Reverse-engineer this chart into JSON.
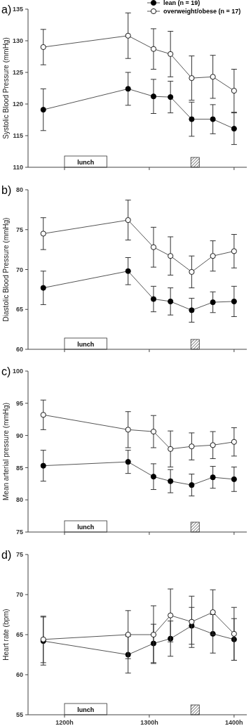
{
  "chart_data": [
    {
      "type": "line",
      "title": "a)",
      "ylabel": "Systolic Blood Pressure (mmHg)",
      "x": [
        1175,
        1275,
        1305,
        1325,
        1350,
        1375,
        1400
      ],
      "xlim": [
        1157,
        1415
      ],
      "xticks": [
        {
          "value": 1200,
          "label": null
        },
        {
          "value": 1300,
          "label": null
        },
        {
          "value": 1400,
          "label": null
        }
      ],
      "ylim": [
        110,
        135
      ],
      "yticks": [
        110,
        115,
        120,
        125,
        130,
        135
      ],
      "tick_labels": "y",
      "marker": "circle",
      "line_style": "solid",
      "grid": false,
      "legend": "top right",
      "bands": [
        {
          "axis": "x",
          "from": 1200,
          "to": 1250,
          "label": "lunch"
        },
        {
          "axis": "x",
          "from": 1349,
          "to": 1359
        }
      ],
      "series": [
        {
          "name": "lean (n = 19)",
          "color": "#000000",
          "values": [
            119.1,
            122.4,
            121.2,
            121.1,
            117.6,
            117.6,
            116.1
          ],
          "errors": [
            3.3,
            2.6,
            2.7,
            2.5,
            2.7,
            2.3,
            2.5
          ]
        },
        {
          "name": "overweight/obese (n = 17)",
          "color": "#ffffff",
          "values": [
            129.0,
            130.8,
            128.7,
            127.9,
            124.1,
            124.3,
            122.1
          ],
          "errors": [
            2.8,
            3.6,
            3.2,
            3.6,
            3.5,
            3.4,
            3.4
          ]
        }
      ]
    },
    {
      "type": "line",
      "title": "b)",
      "ylabel": "Diastolic Blood Pressure (mmHg)",
      "x": [
        1175,
        1275,
        1305,
        1325,
        1350,
        1375,
        1400
      ],
      "xlim": [
        1157,
        1415
      ],
      "xticks": [
        {
          "value": 1200,
          "label": null
        },
        {
          "value": 1300,
          "label": null
        },
        {
          "value": 1400,
          "label": null
        }
      ],
      "ylim": [
        60,
        80
      ],
      "yticks": [
        60,
        65,
        70,
        75,
        80
      ],
      "tick_labels": "y",
      "marker": "circle",
      "line_style": "solid",
      "grid": false,
      "legend": false,
      "bands": [
        {
          "axis": "x",
          "from": 1200,
          "to": 1250,
          "label": "lunch"
        },
        {
          "axis": "x",
          "from": 1349,
          "to": 1359
        }
      ],
      "series": [
        {
          "color": "#000000",
          "values": [
            67.7,
            69.8,
            66.3,
            66.0,
            64.9,
            65.9,
            66.0
          ],
          "errors": [
            2.1,
            1.7,
            1.6,
            1.7,
            1.5,
            1.3,
            1.9
          ]
        },
        {
          "color": "#ffffff",
          "values": [
            74.5,
            76.2,
            72.8,
            71.7,
            69.7,
            71.7,
            72.3
          ],
          "errors": [
            2.0,
            2.5,
            2.5,
            2.4,
            2.0,
            1.9,
            2.1
          ]
        }
      ]
    },
    {
      "type": "line",
      "title": "c)",
      "ylabel": "Mean arterial pressure (mmHg)",
      "x": [
        1175,
        1275,
        1305,
        1325,
        1350,
        1375,
        1400
      ],
      "xlim": [
        1157,
        1415
      ],
      "xticks": [
        {
          "value": 1200,
          "label": null
        },
        {
          "value": 1300,
          "label": null
        },
        {
          "value": 1400,
          "label": null
        }
      ],
      "ylim": [
        75,
        100
      ],
      "yticks": [
        75,
        80,
        85,
        90,
        95,
        100
      ],
      "tick_labels": "y",
      "marker": "circle",
      "line_style": "solid",
      "grid": false,
      "legend": false,
      "bands": [
        {
          "axis": "x",
          "from": 1200,
          "to": 1250,
          "label": "lunch"
        },
        {
          "axis": "x",
          "from": 1349,
          "to": 1359
        }
      ],
      "series": [
        {
          "color": "#000000",
          "values": [
            85.3,
            85.9,
            83.6,
            82.9,
            82.3,
            83.5,
            83.2
          ],
          "errors": [
            2.4,
            1.8,
            2.0,
            1.8,
            1.7,
            1.7,
            1.9
          ]
        },
        {
          "color": "#ffffff",
          "values": [
            93.2,
            90.9,
            90.6,
            87.9,
            88.3,
            88.5,
            89.0
          ],
          "errors": [
            2.3,
            2.8,
            2.5,
            2.8,
            2.1,
            2.1,
            2.2
          ]
        }
      ]
    },
    {
      "type": "line",
      "title": "d)",
      "ylabel": "Heart rate (bpm)",
      "x": [
        1175,
        1275,
        1305,
        1325,
        1350,
        1375,
        1400
      ],
      "xlim": [
        1157,
        1415
      ],
      "xticks": [
        {
          "value": 1200,
          "label": "1200h"
        },
        {
          "value": 1300,
          "label": "1300h"
        },
        {
          "value": 1400,
          "label": "1400h"
        }
      ],
      "ylim": [
        55,
        75
      ],
      "yticks": [
        55,
        60,
        65,
        70,
        75
      ],
      "marker": "circle",
      "line_style": "solid",
      "grid": false,
      "legend": false,
      "bands": [
        {
          "axis": "x",
          "from": 1200,
          "to": 1250,
          "label": "lunch"
        },
        {
          "axis": "x",
          "from": 1349,
          "to": 1359
        }
      ],
      "series": [
        {
          "color": "#000000",
          "values": [
            64.2,
            62.5,
            63.9,
            64.5,
            66.1,
            65.1,
            64.4
          ],
          "errors": [
            3.0,
            2.3,
            2.4,
            2.2,
            2.3,
            2.4,
            2.6
          ]
        },
        {
          "color": "#ffffff",
          "values": [
            64.4,
            65.0,
            65.0,
            67.4,
            66.6,
            67.8,
            65.1
          ],
          "errors": [
            2.9,
            3.0,
            3.6,
            3.3,
            3.2,
            2.8,
            3.3
          ]
        }
      ]
    }
  ]
}
